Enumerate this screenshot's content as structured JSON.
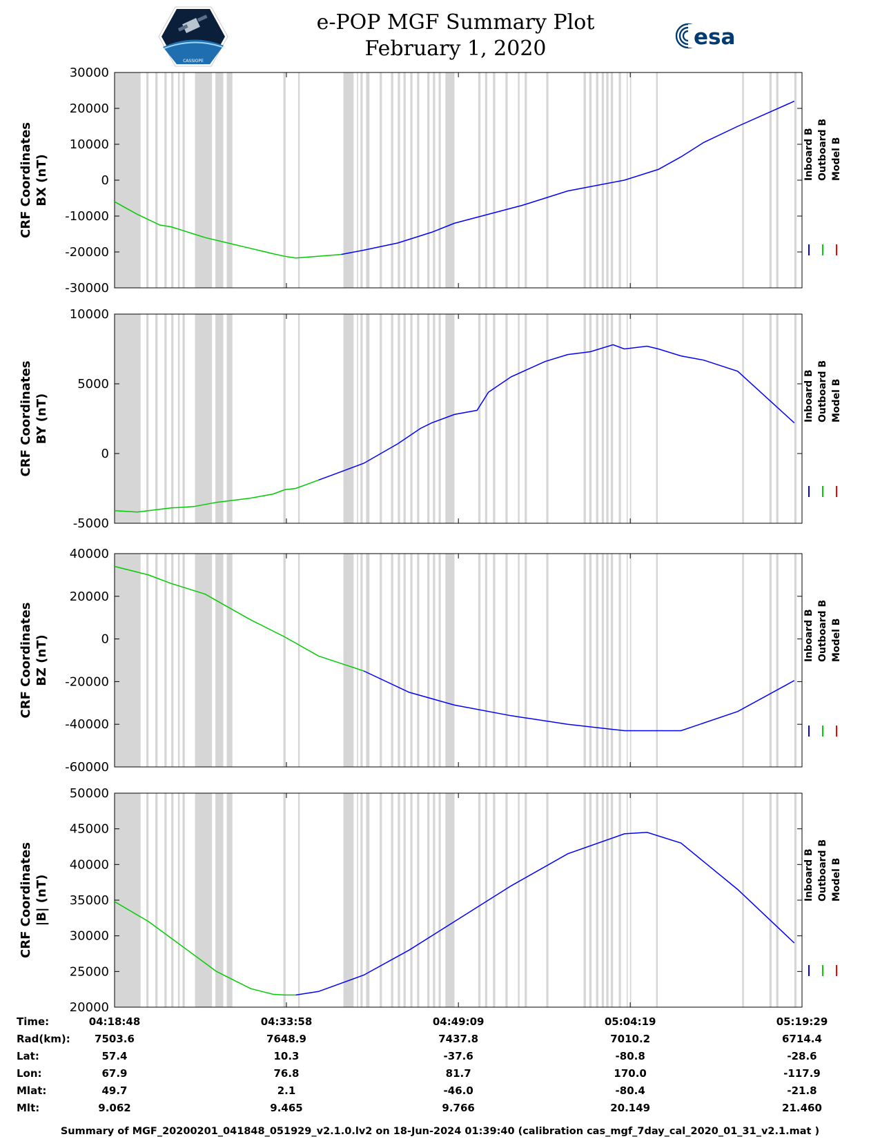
{
  "title": {
    "line1": "e-POP MGF Summary Plot",
    "line2": "February 1, 2020"
  },
  "logos": {
    "left": "CASSIOPE",
    "right": "esa"
  },
  "colors": {
    "inboard": "#0000ff",
    "outboard": "#00cc00",
    "model": "#ff0000",
    "gap": "#d6d6d6"
  },
  "chart_data": [
    {
      "type": "line",
      "ylabel": [
        "CRF Coordinates",
        "BX (nT)"
      ],
      "ylim": [
        -30000,
        30000
      ],
      "yticks": [
        30000,
        20000,
        10000,
        0,
        -10000,
        -20000,
        -30000
      ],
      "legend": [
        "Inboard B",
        "Outboard B",
        "Model B"
      ],
      "series": [
        {
          "name": "Outboard B",
          "x": [
            0,
            2,
            3,
            4,
            5,
            6,
            7,
            8,
            10,
            12,
            14,
            15,
            16,
            20
          ],
          "values": [
            -6000,
            -9500,
            -11000,
            -12500,
            -13000,
            -14000,
            -15000,
            -16000,
            -17500,
            -19000,
            -20500,
            -21200,
            -21700,
            -20700
          ]
        },
        {
          "name": "Inboard B",
          "x": [
            20,
            22,
            25,
            28,
            30,
            33,
            36,
            40,
            45,
            48,
            50,
            52,
            55,
            60
          ],
          "values": [
            -20700,
            -19500,
            -17500,
            -14500,
            -12000,
            -9500,
            -7000,
            -3000,
            0,
            3000,
            6500,
            10500,
            15000,
            22000
          ]
        }
      ]
    },
    {
      "type": "line",
      "ylabel": [
        "CRF Coordinates",
        "BY (nT)"
      ],
      "ylim": [
        -5000,
        10000
      ],
      "yticks": [
        10000,
        5000,
        0,
        -5000
      ],
      "legend": [
        "Inboard B",
        "Outboard B",
        "Model B"
      ],
      "series": [
        {
          "name": "Outboard B",
          "x": [
            0,
            2,
            5,
            7,
            9,
            12,
            14,
            15,
            16,
            18
          ],
          "values": [
            -4100,
            -4200,
            -3900,
            -3800,
            -3500,
            -3200,
            -2900,
            -2600,
            -2500,
            -1900
          ]
        },
        {
          "name": "Inboard B",
          "x": [
            18,
            20,
            22,
            25,
            27,
            28,
            30,
            32,
            33,
            35,
            38,
            40,
            42,
            44,
            45,
            47,
            48,
            50,
            52,
            55,
            60
          ],
          "values": [
            -1900,
            -1300,
            -700,
            700,
            1800,
            2200,
            2800,
            3100,
            4400,
            5500,
            6600,
            7100,
            7300,
            7800,
            7500,
            7700,
            7500,
            7000,
            6700,
            5900,
            2200
          ]
        }
      ]
    },
    {
      "type": "line",
      "ylabel": [
        "CRF Coordinates",
        "BZ (nT)"
      ],
      "ylim": [
        -60000,
        40000
      ],
      "yticks": [
        40000,
        20000,
        0,
        -20000,
        -40000,
        -60000
      ],
      "legend": [
        "Inboard B",
        "Outboard B",
        "Model B"
      ],
      "series": [
        {
          "name": "Outboard B",
          "x": [
            0,
            3,
            5,
            8,
            10,
            12,
            15,
            18,
            22
          ],
          "values": [
            34000,
            30000,
            26000,
            21000,
            15000,
            9000,
            1000,
            -8000,
            -15000
          ]
        },
        {
          "name": "Inboard B",
          "x": [
            22,
            26,
            30,
            35,
            40,
            45,
            50,
            55,
            60
          ],
          "values": [
            -15000,
            -25000,
            -31000,
            -36000,
            -40000,
            -43000,
            -43000,
            -34000,
            -19500
          ]
        }
      ]
    },
    {
      "type": "line",
      "ylabel": [
        "CRF Coordinates",
        "|B| (nT)"
      ],
      "ylim": [
        20000,
        50000
      ],
      "yticks": [
        50000,
        45000,
        40000,
        35000,
        30000,
        25000,
        20000
      ],
      "legend": [
        "Inboard B",
        "Outboard B",
        "Model B"
      ],
      "series": [
        {
          "name": "Outboard B",
          "x": [
            0,
            3,
            6,
            9,
            12,
            14,
            15,
            16
          ],
          "values": [
            34800,
            32000,
            28500,
            25000,
            22600,
            21800,
            21700,
            21700
          ]
        },
        {
          "name": "Inboard B",
          "x": [
            16,
            18,
            22,
            26,
            30,
            35,
            40,
            45,
            47,
            50,
            55,
            60
          ],
          "values": [
            21700,
            22200,
            24500,
            28000,
            32000,
            37000,
            41500,
            44300,
            44500,
            43000,
            36500,
            29000
          ]
        }
      ]
    }
  ],
  "xaxis": {
    "range_min": [
      0,
      60.68
    ],
    "tick_min": [
      0,
      15.17,
      30.35,
      45.52,
      60.68
    ]
  },
  "gaps_min": [
    [
      0,
      2.3
    ],
    [
      2.8,
      3.0
    ],
    [
      3.6,
      3.8
    ],
    [
      4.4,
      4.6
    ],
    [
      5.0,
      5.2
    ],
    [
      5.6,
      5.75
    ],
    [
      6.0,
      6.2
    ],
    [
      7.1,
      8.6
    ],
    [
      8.9,
      9.6
    ],
    [
      9.9,
      10.4
    ],
    [
      14.9,
      15.1
    ],
    [
      16.2,
      16.35
    ],
    [
      20.2,
      21.1
    ],
    [
      21.4,
      21.5
    ],
    [
      21.7,
      21.9
    ],
    [
      22.2,
      22.5
    ],
    [
      23.4,
      23.6
    ],
    [
      24.4,
      24.6
    ],
    [
      25.0,
      25.2
    ],
    [
      25.5,
      25.7
    ],
    [
      26.1,
      26.3
    ],
    [
      26.7,
      26.9
    ],
    [
      27.6,
      27.8
    ],
    [
      28.1,
      28.3
    ],
    [
      28.6,
      28.8
    ],
    [
      29.2,
      30.0
    ],
    [
      32.1,
      32.3
    ],
    [
      32.7,
      32.9
    ],
    [
      33.4,
      33.6
    ],
    [
      34.5,
      34.7
    ],
    [
      35.6,
      35.75
    ],
    [
      36.2,
      36.4
    ],
    [
      38.1,
      38.3
    ],
    [
      41.4,
      41.6
    ],
    [
      41.9,
      42.1
    ],
    [
      42.5,
      42.7
    ],
    [
      43.0,
      43.2
    ],
    [
      43.4,
      43.6
    ],
    [
      43.8,
      44.0
    ],
    [
      44.5,
      44.7
    ],
    [
      45.2,
      45.3
    ],
    [
      45.5,
      45.6
    ],
    [
      47.8,
      47.95
    ],
    [
      55.4,
      55.55
    ],
    [
      57.8,
      58.0
    ],
    [
      58.4,
      58.6
    ],
    [
      60.0,
      60.2
    ]
  ],
  "info_table": {
    "labels": [
      "Time:",
      "Rad(km):",
      "Lat:",
      "Lon:",
      "Mlat:",
      "Mlt:"
    ],
    "columns": [
      [
        "04:18:48",
        "7503.6",
        "57.4",
        "67.9",
        "49.7",
        "9.062"
      ],
      [
        "04:33:58",
        "7648.9",
        "10.3",
        "76.8",
        "2.1",
        "9.465"
      ],
      [
        "04:49:09",
        "7437.8",
        "-37.6",
        "81.7",
        "-46.0",
        "9.766"
      ],
      [
        "05:04:19",
        "7010.2",
        "-80.8",
        "170.0",
        "-80.4",
        "20.149"
      ],
      [
        "05:19:29",
        "6714.4",
        "-28.6",
        "-117.9",
        "-21.8",
        "21.460"
      ]
    ]
  },
  "footer": "Summary of MGF_20200201_041848_051929_v2.1.0.lv2 on 18-Jun-2024 01:39:40 (calibration cas_mgf_7day_cal_2020_01_31_v2.1.mat )"
}
